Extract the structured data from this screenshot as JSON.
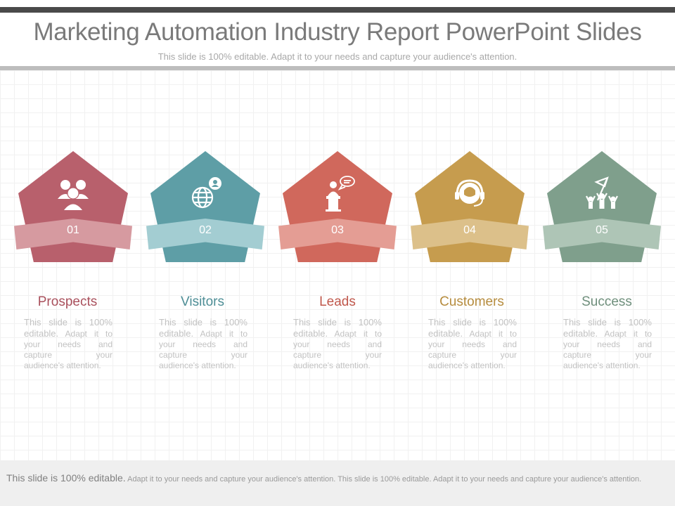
{
  "header": {
    "title": "Marketing Automation Industry Report PowerPoint Slides",
    "subtitle": "This slide is 100% editable. Adapt it to your needs and capture your audience's attention."
  },
  "steps": [
    {
      "number": "01",
      "label": "Prospects",
      "desc_lead": "This slide is 100% editable.",
      "desc_rest": " Adapt it to your needs and capture your audience's attention.",
      "icon": "people-icon",
      "color": "#b8606c",
      "ribbon_color": "#d69aa0",
      "label_color": "#a9505c"
    },
    {
      "number": "02",
      "label": "Visitors",
      "desc_lead": "This slide is 100% editable.",
      "desc_rest": " Adapt it to your needs and capture your audience's attention.",
      "icon": "globe-person-icon",
      "color": "#5e9ea6",
      "ribbon_color": "#a3cdd2",
      "label_color": "#4e8e96"
    },
    {
      "number": "03",
      "label": "Leads",
      "desc_lead": "This slide is 100% editable.",
      "desc_rest": " Adapt it to your needs and capture your audience's attention.",
      "icon": "speaker-podium-icon",
      "color": "#d0685c",
      "ribbon_color": "#e49d94",
      "label_color": "#c0584c"
    },
    {
      "number": "04",
      "label": "Customers",
      "desc_lead": "This slide is 100% editable.",
      "desc_rest": " Adapt it to your needs and capture your audience's attention.",
      "icon": "headset-support-icon",
      "color": "#c69c4e",
      "ribbon_color": "#dcc08a",
      "label_color": "#b68c3e"
    },
    {
      "number": "05",
      "label": "Success",
      "desc_lead": "This slide is 100% editable.",
      "desc_rest": " Adapt it to your needs and capture your audience's attention.",
      "icon": "celebration-flag-icon",
      "color": "#7f9f8c",
      "ribbon_color": "#aec5b6",
      "label_color": "#6f8f7c"
    }
  ],
  "footer": {
    "lead": "This slide is 100% editable.",
    "rest": " Adapt it to your needs and capture your audience's attention. This slide is 100% editable. Adapt it to your needs and capture your audience's attention."
  }
}
